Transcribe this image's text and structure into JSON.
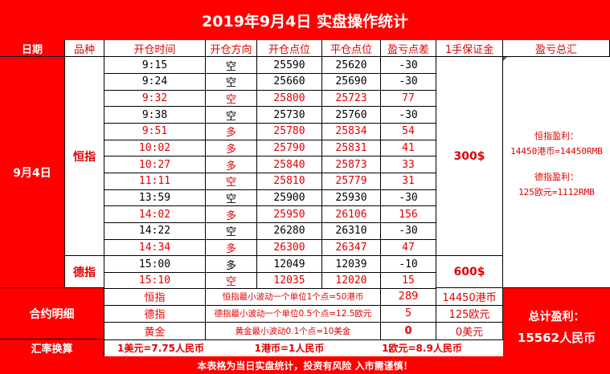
{
  "title": "2019年9月4日 实盘操作统计",
  "headers": [
    "日期",
    "品种",
    "开仓时间",
    "开仓方向",
    "开仓点位",
    "平仓点位",
    "盈亏点差",
    "1手保证金",
    "盈亏总汇"
  ],
  "date_label": "9月4日",
  "hsi": {
    "name": "恒指",
    "margin": "300$",
    "rows": [
      {
        "time": "9:15",
        "dir": "空",
        "open": "25590",
        "close": "25620",
        "pnl": "-30",
        "win": false
      },
      {
        "time": "9:24",
        "dir": "空",
        "open": "25660",
        "close": "25690",
        "pnl": "-30",
        "win": false
      },
      {
        "time": "9:32",
        "dir": "空",
        "open": "25800",
        "close": "25723",
        "pnl": "77",
        "win": true
      },
      {
        "time": "9:38",
        "dir": "空",
        "open": "25730",
        "close": "25760",
        "pnl": "-30",
        "win": false
      },
      {
        "time": "9:51",
        "dir": "多",
        "open": "25780",
        "close": "25834",
        "pnl": "54",
        "win": true
      },
      {
        "time": "10:02",
        "dir": "多",
        "open": "25790",
        "close": "25831",
        "pnl": "41",
        "win": true
      },
      {
        "time": "10:27",
        "dir": "多",
        "open": "25840",
        "close": "25873",
        "pnl": "33",
        "win": true
      },
      {
        "time": "11:11",
        "dir": "空",
        "open": "25810",
        "close": "25779",
        "pnl": "31",
        "win": true
      },
      {
        "time": "13:59",
        "dir": "空",
        "open": "25900",
        "close": "25930",
        "pnl": "-30",
        "win": false
      },
      {
        "time": "14:02",
        "dir": "多",
        "open": "25950",
        "close": "26106",
        "pnl": "156",
        "win": true
      },
      {
        "time": "14:22",
        "dir": "空",
        "open": "26280",
        "close": "26310",
        "pnl": "-30",
        "win": false
      },
      {
        "time": "14:34",
        "dir": "多",
        "open": "26300",
        "close": "26347",
        "pnl": "47",
        "win": true
      }
    ]
  },
  "dax": {
    "name": "德指",
    "margin": "600$",
    "rows": [
      {
        "time": "15:00",
        "dir": "多",
        "open": "12049",
        "close": "12039",
        "pnl": "-10",
        "win": false
      },
      {
        "time": "15:10",
        "dir": "空",
        "open": "12035",
        "close": "12020",
        "pnl": "15",
        "win": true
      }
    ]
  },
  "summary": {
    "hsi_line1": "恒指盈利：",
    "hsi_line2": "14450港币=14450RMB",
    "dax_line1": "德指盈利：",
    "dax_line2": "125欧元=1112RMB"
  },
  "contract": {
    "label": "合约明细",
    "rows": [
      {
        "name": "恒指",
        "desc": "恒指最小波动一个单位1个点=50港币",
        "points": "289",
        "amount": "14450港币"
      },
      {
        "name": "德指",
        "desc": "德指最小波动一个单位0.5个点=12.5欧元",
        "points": "5",
        "amount": "125欧元"
      },
      {
        "name": "黄金",
        "desc": "黄金最小波动0.1个点=10美金",
        "points": "0",
        "amount": "0美元"
      }
    ]
  },
  "total": {
    "line1": "总计盈利：",
    "line2": "15562人民币"
  },
  "fx": {
    "label": "汇率换算",
    "usd": "1美元=7.75人民币",
    "hkd": "1港币=1人民币",
    "eur": "1欧元=8.9人民币"
  },
  "footer": "本表格为当日实盘统计，投资有风险 入市需谨慎！",
  "colors": {
    "accent": "#ff0000",
    "win_text": "#e00000",
    "border": "#000000"
  }
}
